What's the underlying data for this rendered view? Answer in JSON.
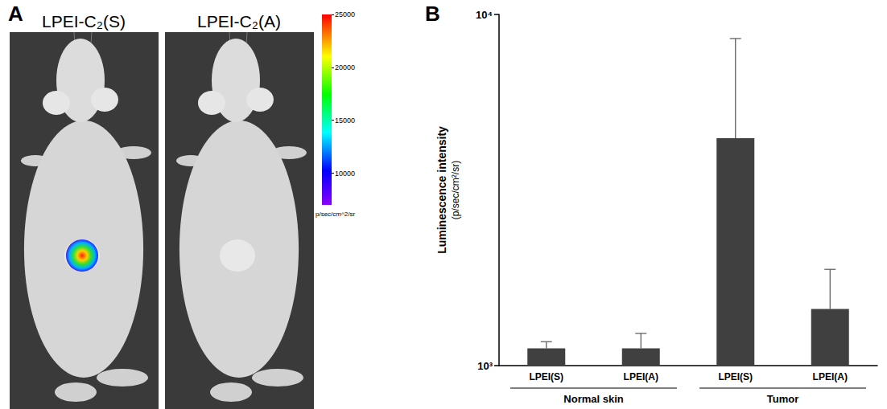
{
  "panel_a": {
    "letter": "A",
    "images": [
      {
        "label": "LPEI-C₂(S)",
        "signal": true
      },
      {
        "label": "LPEI-C₂(A)",
        "signal": false
      }
    ],
    "colorbar": {
      "range": [
        7000,
        25000
      ],
      "ticks": [
        10000,
        15000,
        20000,
        25000
      ],
      "unit": "p/sec/cm^2/sr"
    }
  },
  "chart_data": {
    "letter": "B",
    "type": "bar",
    "log": "y",
    "categories": [
      "LPEI(S)",
      "LPEI(A)",
      "LPEI(S)",
      "LPEI(A)"
    ],
    "values": [
      1120,
      1120,
      4440,
      1450
    ],
    "errors": [
      50,
      115,
      4100,
      430
    ],
    "groups": [
      {
        "name": "Normal skin",
        "span": 2
      },
      {
        "name": "Tumor",
        "span": 2
      }
    ],
    "ylabel": "Luminescence intensity",
    "ylabel_unit": "(p/sec/cm²/sr)",
    "ylim": [
      1000,
      10000
    ],
    "yticks": [
      {
        "value": 1000,
        "label": "10³"
      },
      {
        "value": 10000,
        "label": "10⁴"
      }
    ],
    "color": "#404040",
    "grid": false
  }
}
